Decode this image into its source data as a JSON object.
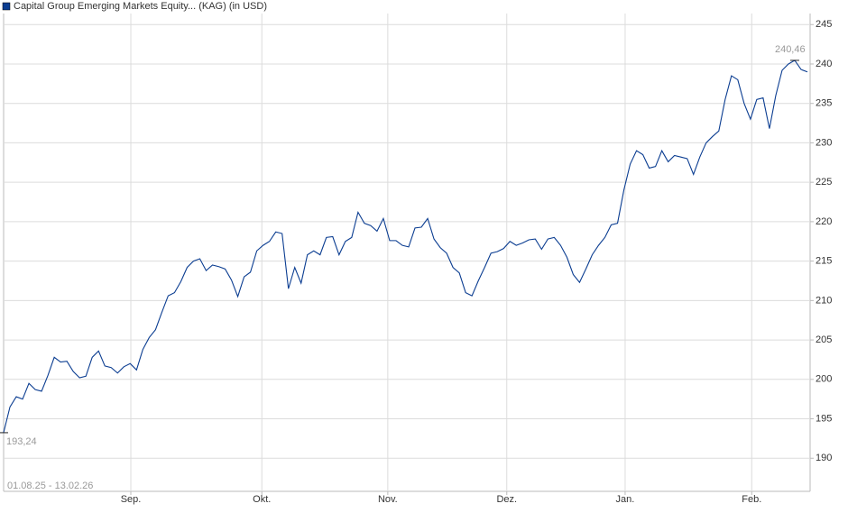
{
  "chart_data": {
    "type": "line",
    "title": "Capital Group Emerging Markets Equity... (KAG) (in USD)",
    "subtitle": "01.08.25 - 13.02.26",
    "series": [
      {
        "name": "Capital Group Emerging Markets Equity... (KAG) (in USD)",
        "color": "#0b3d91",
        "values": [
          193.24,
          196.5,
          197.8,
          197.5,
          199.5,
          198.7,
          198.5,
          200.5,
          202.8,
          202.2,
          202.3,
          201,
          200.2,
          200.4,
          202.8,
          203.6,
          201.7,
          201.5,
          200.8,
          201.6,
          202,
          201.2,
          203.8,
          205.3,
          206.3,
          208.5,
          210.6,
          211,
          212.4,
          214.2,
          215,
          215.3,
          213.8,
          214.5,
          214.3,
          214,
          212.6,
          210.5,
          213,
          213.6,
          216.3,
          217,
          217.5,
          218.7,
          218.5,
          211.5,
          214.2,
          212.2,
          215.8,
          216.3,
          215.8,
          218,
          218.1,
          215.8,
          217.5,
          218,
          221.2,
          219.8,
          219.5,
          218.8,
          220.4,
          217.6,
          217.6,
          217,
          216.8,
          219.2,
          219.3,
          220.4,
          217.8,
          216.7,
          216,
          214.2,
          213.5,
          211,
          210.6,
          212.5,
          214.2,
          216,
          216.2,
          216.6,
          217.5,
          217,
          217.3,
          217.7,
          217.8,
          216.5,
          217.8,
          218,
          217,
          215.5,
          213.3,
          212.3,
          214,
          215.8,
          217,
          218,
          219.6,
          219.8,
          224,
          227.3,
          229,
          228.5,
          226.8,
          227,
          229,
          227.6,
          228.4,
          228.2,
          228,
          226,
          228.2,
          230,
          230.8,
          231.5,
          235.5,
          238.5,
          238,
          235,
          233,
          235.5,
          235.7,
          231.8,
          236,
          239.2,
          240,
          240.46,
          239.3,
          239
        ]
      }
    ],
    "annotations": [
      {
        "text": "193,24",
        "value": 193.24
      },
      {
        "text": "240,46",
        "value": 240.46
      }
    ],
    "xticks": [
      {
        "value": 20.1,
        "label": "Sep."
      },
      {
        "value": 40.8,
        "label": "Okt."
      },
      {
        "value": 60.7,
        "label": "Nov."
      },
      {
        "value": 79.5,
        "label": "Dez."
      },
      {
        "value": 98.2,
        "label": "Jan."
      },
      {
        "value": 118.2,
        "label": "Feb."
      }
    ],
    "ylim": [
      185.8,
      246.4
    ],
    "yticks": [
      190,
      195,
      200,
      205,
      210,
      215,
      220,
      225,
      230,
      235,
      240,
      245
    ],
    "grid": true
  }
}
